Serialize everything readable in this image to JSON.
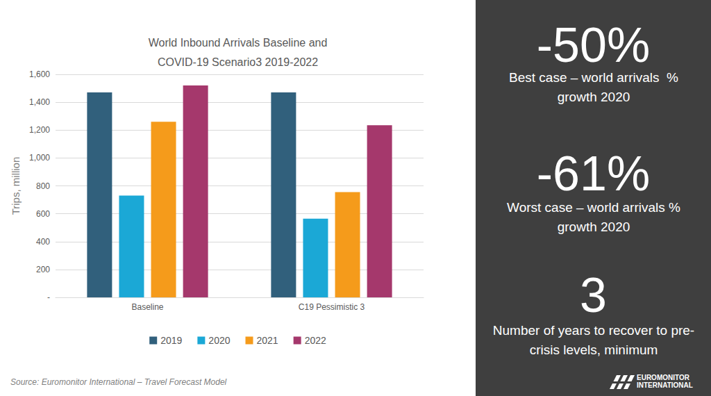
{
  "chart_data": {
    "type": "bar",
    "title": "World Inbound Arrivals Baseline and\nCOVID-19 Scenario3 2019-2022",
    "y_label": "Trips, million",
    "categories": [
      "Baseline",
      "C19 Pessimistic 3"
    ],
    "series": [
      {
        "name": "2019",
        "color": "#31607c",
        "values": [
          1470,
          1470
        ]
      },
      {
        "name": "2020",
        "color": "#1ba8d6",
        "values": [
          730,
          565
        ]
      },
      {
        "name": "2021",
        "color": "#f59b1b",
        "values": [
          1260,
          755
        ]
      },
      {
        "name": "2022",
        "color": "#a5386c",
        "values": [
          1520,
          1235
        ]
      }
    ],
    "ylim": [
      0,
      1600
    ],
    "yticks": [
      {
        "value": 0,
        "label": "-"
      },
      200,
      400,
      600,
      800,
      {
        "value": 1000,
        "label": "1,000"
      },
      {
        "value": 1200,
        "label": "1,200"
      },
      {
        "value": 1400,
        "label": "1,400"
      },
      {
        "value": 1600,
        "label": "1,600"
      }
    ],
    "grid": true,
    "legend": "bottom",
    "source": "Source: Euromonitor International – Travel Forecast Model"
  },
  "side_panel": {
    "stats": [
      {
        "figure": "-50%",
        "caption": "Best case – world arrivals  % growth 2020"
      },
      {
        "figure": "-61%",
        "caption": "Worst case – world arrivals % growth 2020"
      },
      {
        "figure": "3",
        "caption": "Number of years to recover to pre-crisis levels, minimum"
      }
    ],
    "logo": "EUROMONITOR INTERNATIONAL"
  }
}
